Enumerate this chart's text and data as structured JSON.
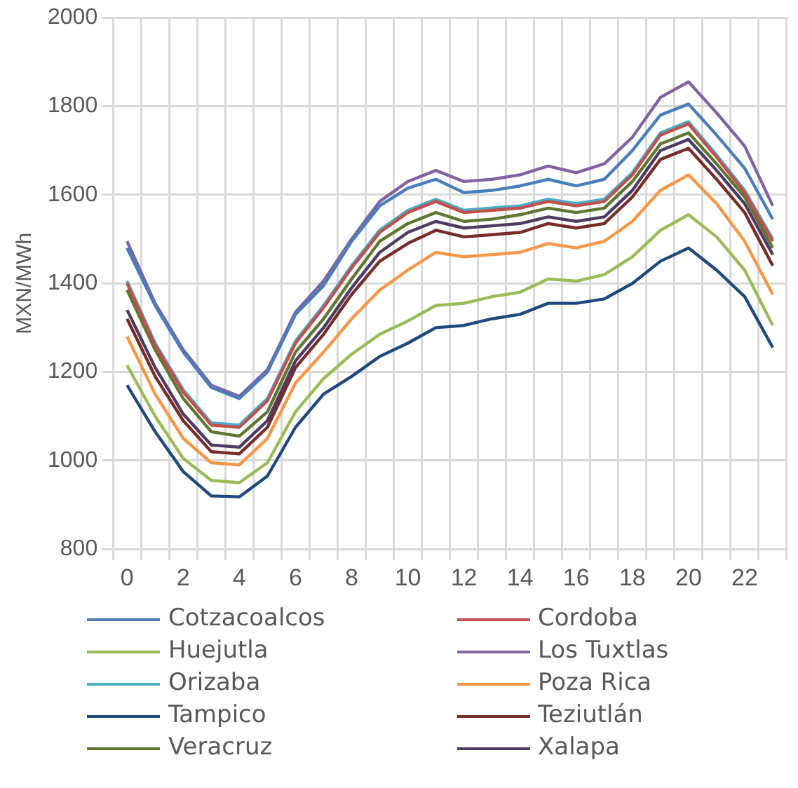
{
  "chart_data": {
    "type": "line",
    "ylabel": "MXN/MWh",
    "categories": [
      "0",
      null,
      "2",
      null,
      "4",
      null,
      "6",
      null,
      "8",
      null,
      "10",
      null,
      "12",
      null,
      "14",
      null,
      "16",
      null,
      "18",
      null,
      "20",
      null,
      "22",
      null
    ],
    "ylim": [
      800,
      2000
    ],
    "yticks": [
      800,
      1000,
      1200,
      1400,
      1600,
      1800,
      2000
    ],
    "grid": true,
    "legend": "bottom",
    "marker": "none",
    "series": [
      {
        "name": "Cotzacoalcos",
        "color": "#4a7ebb",
        "values": [
          1480,
          1350,
          1245,
          1165,
          1140,
          1200,
          1330,
          1395,
          1495,
          1575,
          1615,
          1635,
          1605,
          1610,
          1620,
          1635,
          1620,
          1635,
          1700,
          1780,
          1805,
          1735,
          1660,
          1545
        ]
      },
      {
        "name": "Cordoba",
        "color": "#c0504d",
        "values": [
          1400,
          1260,
          1155,
          1080,
          1075,
          1135,
          1265,
          1345,
          1435,
          1515,
          1560,
          1585,
          1560,
          1565,
          1570,
          1585,
          1575,
          1585,
          1645,
          1735,
          1760,
          1685,
          1605,
          1495
        ]
      },
      {
        "name": "Huejutla",
        "color": "#9bbb59",
        "values": [
          1215,
          1100,
          1005,
          955,
          950,
          995,
          1110,
          1185,
          1240,
          1285,
          1315,
          1350,
          1355,
          1370,
          1380,
          1410,
          1405,
          1420,
          1460,
          1520,
          1555,
          1505,
          1430,
          1305
        ]
      },
      {
        "name": "Los Tuxtlas",
        "color": "#8064a2",
        "values": [
          1495,
          1355,
          1250,
          1170,
          1145,
          1205,
          1335,
          1405,
          1500,
          1585,
          1630,
          1655,
          1630,
          1635,
          1645,
          1665,
          1650,
          1670,
          1730,
          1820,
          1855,
          1785,
          1710,
          1575
        ]
      },
      {
        "name": "Orizaba",
        "color": "#4bacc6",
        "values": [
          1405,
          1265,
          1160,
          1085,
          1080,
          1140,
          1270,
          1350,
          1440,
          1520,
          1565,
          1590,
          1565,
          1570,
          1575,
          1590,
          1580,
          1590,
          1650,
          1740,
          1765,
          1690,
          1610,
          1500
        ]
      },
      {
        "name": "Poza Rica",
        "color": "#f79646",
        "values": [
          1280,
          1150,
          1050,
          995,
          990,
          1050,
          1175,
          1245,
          1320,
          1385,
          1430,
          1470,
          1460,
          1465,
          1470,
          1490,
          1480,
          1495,
          1540,
          1610,
          1645,
          1580,
          1495,
          1375
        ]
      },
      {
        "name": "Tampico",
        "color": "#1f497d",
        "values": [
          1170,
          1065,
          975,
          920,
          918,
          965,
          1075,
          1150,
          1190,
          1235,
          1265,
          1300,
          1305,
          1320,
          1330,
          1355,
          1355,
          1365,
          1400,
          1450,
          1480,
          1430,
          1370,
          1255
        ]
      },
      {
        "name": "Teziutlán",
        "color": "#772c2a",
        "values": [
          1320,
          1190,
          1090,
          1020,
          1015,
          1075,
          1210,
          1285,
          1375,
          1450,
          1490,
          1520,
          1505,
          1510,
          1515,
          1535,
          1525,
          1535,
          1595,
          1680,
          1705,
          1635,
          1560,
          1440
        ]
      },
      {
        "name": "Veracruz",
        "color": "#5f7530",
        "values": [
          1385,
          1250,
          1140,
          1065,
          1055,
          1110,
          1245,
          1320,
          1410,
          1495,
          1535,
          1560,
          1540,
          1545,
          1555,
          1570,
          1560,
          1570,
          1630,
          1715,
          1740,
          1670,
          1595,
          1480
        ]
      },
      {
        "name": "Xalapa",
        "color": "#4d3b62",
        "values": [
          1340,
          1210,
          1105,
          1035,
          1030,
          1090,
          1225,
          1300,
          1390,
          1470,
          1515,
          1540,
          1525,
          1530,
          1535,
          1550,
          1540,
          1550,
          1610,
          1700,
          1725,
          1655,
          1580,
          1465
        ]
      }
    ]
  }
}
